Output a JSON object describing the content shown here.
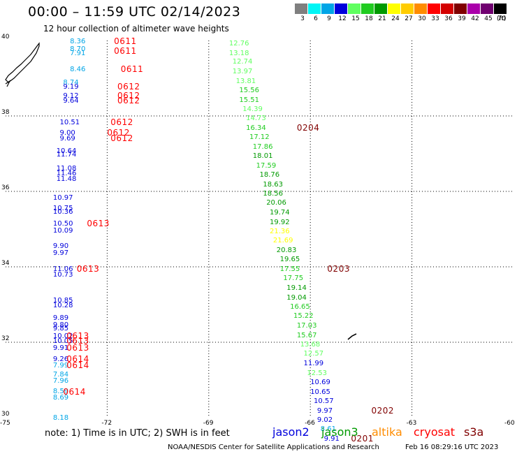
{
  "header": {
    "title": "00:00 – 11:59 UTC 02/14/2023",
    "subtitle": "12 hour collection of altimeter wave heights"
  },
  "legend": {
    "unit": "(ft)",
    "bins": [
      {
        "label": "3",
        "color": "#7f7f7f"
      },
      {
        "label": "6",
        "color": "#00f5f5"
      },
      {
        "label": "9",
        "color": "#00a5e6"
      },
      {
        "label": "12",
        "color": "#0000dc"
      },
      {
        "label": "15",
        "color": "#60ff60"
      },
      {
        "label": "18",
        "color": "#20cc20"
      },
      {
        "label": "21",
        "color": "#009a00"
      },
      {
        "label": "24",
        "color": "#ffff00"
      },
      {
        "label": "27",
        "color": "#ffcc00"
      },
      {
        "label": "30",
        "color": "#ff8c00"
      },
      {
        "label": "33",
        "color": "#ff0000"
      },
      {
        "label": "36",
        "color": "#d40000"
      },
      {
        "label": "39",
        "color": "#800000"
      },
      {
        "label": "42",
        "color": "#aa00aa"
      },
      {
        "label": "45",
        "color": "#700070"
      },
      {
        "label": "70",
        "color": "#000000"
      }
    ]
  },
  "axes": {
    "lon_ticks": [
      "-75",
      "-72",
      "-69",
      "-66",
      "-63",
      "-60"
    ],
    "lat_ticks": [
      "40",
      "38",
      "36",
      "34",
      "32",
      "30"
    ],
    "lon_range": [
      -75,
      -60
    ],
    "lat_range": [
      30,
      40
    ]
  },
  "chart_data": {
    "type": "scatter",
    "title": "00:00 – 11:59 UTC 02/14/2023",
    "subtitle": "12 hour collection of altimeter wave heights",
    "units": "ft",
    "grid": true,
    "track_west": [
      {
        "lon": -73.1,
        "lat": 39.98,
        "swh": 8.36
      },
      {
        "lon": -73.1,
        "lat": 39.77,
        "swh": 8.7
      },
      {
        "lon": -73.1,
        "lat": 39.67,
        "swh": 7.91
      },
      {
        "lon": -73.1,
        "lat": 39.24,
        "swh": 8.46
      },
      {
        "lon": -73.3,
        "lat": 38.88,
        "swh": 8.74
      },
      {
        "lon": -73.3,
        "lat": 38.78,
        "swh": 9.19
      },
      {
        "lon": -73.3,
        "lat": 38.53,
        "swh": 9.12
      },
      {
        "lon": -73.3,
        "lat": 38.41,
        "swh": 9.64
      },
      {
        "lon": -73.4,
        "lat": 37.84,
        "swh": 10.51
      },
      {
        "lon": -73.4,
        "lat": 37.55,
        "swh": 9.0
      },
      {
        "lon": -73.4,
        "lat": 37.41,
        "swh": 9.69
      },
      {
        "lon": -73.5,
        "lat": 37.08,
        "swh": 10.64
      },
      {
        "lon": -73.5,
        "lat": 36.98,
        "swh": 11.74
      },
      {
        "lon": -73.5,
        "lat": 36.61,
        "swh": 11.08
      },
      {
        "lon": -73.5,
        "lat": 36.49,
        "swh": 11.46
      },
      {
        "lon": -73.5,
        "lat": 36.34,
        "swh": 11.48
      },
      {
        "lon": -73.6,
        "lat": 35.84,
        "swh": 10.97
      },
      {
        "lon": -73.6,
        "lat": 35.56,
        "swh": 10.75
      },
      {
        "lon": -73.6,
        "lat": 35.46,
        "swh": 10.36
      },
      {
        "lon": -73.6,
        "lat": 35.15,
        "swh": 10.5
      },
      {
        "lon": -73.6,
        "lat": 34.96,
        "swh": 10.09
      },
      {
        "lon": -73.6,
        "lat": 34.56,
        "swh": 9.9
      },
      {
        "lon": -73.6,
        "lat": 34.37,
        "swh": 9.97
      },
      {
        "lon": -73.6,
        "lat": 33.95,
        "swh": 11.06
      },
      {
        "lon": -73.6,
        "lat": 33.79,
        "swh": 10.73
      },
      {
        "lon": -73.6,
        "lat": 33.11,
        "swh": 10.85
      },
      {
        "lon": -73.6,
        "lat": 32.98,
        "swh": 10.28
      },
      {
        "lon": -73.6,
        "lat": 32.65,
        "swh": 9.89
      },
      {
        "lon": -73.6,
        "lat": 32.46,
        "swh": 9.8
      },
      {
        "lon": -73.6,
        "lat": 32.37,
        "swh": 9.85
      },
      {
        "lon": -73.6,
        "lat": 32.16,
        "swh": 10.02
      },
      {
        "lon": -73.6,
        "lat": 32.04,
        "swh": 10.05
      },
      {
        "lon": -73.6,
        "lat": 31.86,
        "swh": 9.91
      },
      {
        "lon": -73.6,
        "lat": 31.55,
        "swh": 9.26
      },
      {
        "lon": -73.6,
        "lat": 31.38,
        "swh": 7.99
      },
      {
        "lon": -73.6,
        "lat": 31.15,
        "swh": 7.84
      },
      {
        "lon": -73.6,
        "lat": 30.99,
        "swh": 7.96
      },
      {
        "lon": -73.6,
        "lat": 30.7,
        "swh": 8.59
      },
      {
        "lon": -73.6,
        "lat": 30.54,
        "swh": 8.69
      },
      {
        "lon": -73.6,
        "lat": 30.0,
        "swh": 8.18
      }
    ],
    "track_east": [
      {
        "lon": -68.4,
        "lat": 39.93,
        "swh": 12.76
      },
      {
        "lon": -68.4,
        "lat": 39.67,
        "swh": 13.18
      },
      {
        "lon": -68.3,
        "lat": 39.44,
        "swh": 12.74
      },
      {
        "lon": -68.3,
        "lat": 39.18,
        "swh": 13.97
      },
      {
        "lon": -68.2,
        "lat": 38.93,
        "swh": 13.81
      },
      {
        "lon": -68.1,
        "lat": 38.69,
        "swh": 15.56
      },
      {
        "lon": -68.1,
        "lat": 38.42,
        "swh": 15.51
      },
      {
        "lon": -68.0,
        "lat": 38.18,
        "swh": 14.39
      },
      {
        "lon": -67.9,
        "lat": 37.94,
        "swh": 14.73
      },
      {
        "lon": -67.9,
        "lat": 37.69,
        "swh": 16.34
      },
      {
        "lon": -67.8,
        "lat": 37.44,
        "swh": 17.12
      },
      {
        "lon": -67.7,
        "lat": 37.19,
        "swh": 17.86
      },
      {
        "lon": -67.7,
        "lat": 36.94,
        "swh": 18.01
      },
      {
        "lon": -67.6,
        "lat": 36.69,
        "swh": 17.59
      },
      {
        "lon": -67.5,
        "lat": 36.44,
        "swh": 18.76
      },
      {
        "lon": -67.4,
        "lat": 36.19,
        "swh": 18.63
      },
      {
        "lon": -67.4,
        "lat": 35.94,
        "swh": 18.56
      },
      {
        "lon": -67.3,
        "lat": 35.7,
        "swh": 20.06
      },
      {
        "lon": -67.2,
        "lat": 35.44,
        "swh": 19.74
      },
      {
        "lon": -67.2,
        "lat": 35.19,
        "swh": 19.92
      },
      {
        "lon": -67.2,
        "lat": 34.95,
        "swh": 21.36
      },
      {
        "lon": -67.1,
        "lat": 34.7,
        "swh": 21.69
      },
      {
        "lon": -67.0,
        "lat": 34.44,
        "swh": 20.83
      },
      {
        "lon": -66.9,
        "lat": 34.2,
        "swh": 19.65
      },
      {
        "lon": -66.9,
        "lat": 33.95,
        "swh": 17.55
      },
      {
        "lon": -66.8,
        "lat": 33.7,
        "swh": 17.75
      },
      {
        "lon": -66.7,
        "lat": 33.44,
        "swh": 19.14
      },
      {
        "lon": -66.7,
        "lat": 33.19,
        "swh": 19.04
      },
      {
        "lon": -66.6,
        "lat": 32.94,
        "swh": 16.65
      },
      {
        "lon": -66.5,
        "lat": 32.7,
        "swh": 15.22
      },
      {
        "lon": -66.4,
        "lat": 32.44,
        "swh": 17.03
      },
      {
        "lon": -66.4,
        "lat": 32.19,
        "swh": 15.67
      },
      {
        "lon": -66.3,
        "lat": 31.95,
        "swh": 13.68
      },
      {
        "lon": -66.2,
        "lat": 31.7,
        "swh": 12.57
      },
      {
        "lon": -66.2,
        "lat": 31.44,
        "swh": 11.99
      },
      {
        "lon": -66.1,
        "lat": 31.19,
        "swh": 12.53
      },
      {
        "lon": -66.0,
        "lat": 30.94,
        "swh": 10.69
      },
      {
        "lon": -66.0,
        "lat": 30.69,
        "swh": 10.65
      },
      {
        "lon": -65.9,
        "lat": 30.44,
        "swh": 10.57
      },
      {
        "lon": -65.8,
        "lat": 30.19,
        "swh": 9.97
      },
      {
        "lon": -65.8,
        "lat": 29.94,
        "swh": 9.02
      },
      {
        "lon": -65.7,
        "lat": 29.7,
        "swh": 8.61
      },
      {
        "lon": -65.6,
        "lat": 29.44,
        "swh": 9.91
      }
    ],
    "times": [
      {
        "label": "0611",
        "color": "#ff0000",
        "lon": -71.8,
        "lat": 39.98
      },
      {
        "label": "0611",
        "color": "#ff0000",
        "lon": -71.8,
        "lat": 39.72
      },
      {
        "label": "0611",
        "color": "#ff0000",
        "lon": -71.6,
        "lat": 39.24
      },
      {
        "label": "0612",
        "color": "#ff0000",
        "lon": -71.7,
        "lat": 38.78
      },
      {
        "label": "0612",
        "color": "#ff0000",
        "lon": -71.7,
        "lat": 38.53
      },
      {
        "label": "0612",
        "color": "#ff0000",
        "lon": -71.7,
        "lat": 38.41
      },
      {
        "label": "0612",
        "color": "#ff0000",
        "lon": -71.9,
        "lat": 37.84
      },
      {
        "label": "0612",
        "color": "#ff0000",
        "lon": -72.0,
        "lat": 37.55
      },
      {
        "label": "0612",
        "color": "#ff0000",
        "lon": -71.9,
        "lat": 37.41
      },
      {
        "label": "0613",
        "color": "#ff0000",
        "lon": -72.6,
        "lat": 35.15
      },
      {
        "label": "0613",
        "color": "#ff0000",
        "lon": -72.9,
        "lat": 33.95
      },
      {
        "label": "0613",
        "color": "#ff0000",
        "lon": -73.2,
        "lat": 32.16
      },
      {
        "label": "0613",
        "color": "#ff0000",
        "lon": -73.2,
        "lat": 32.04
      },
      {
        "label": "0613",
        "color": "#ff0000",
        "lon": -73.2,
        "lat": 31.86
      },
      {
        "label": "0614",
        "color": "#ff0000",
        "lon": -73.2,
        "lat": 31.55
      },
      {
        "label": "0614",
        "color": "#ff0000",
        "lon": -73.2,
        "lat": 31.38
      },
      {
        "label": "0614",
        "color": "#ff0000",
        "lon": -73.3,
        "lat": 30.69
      },
      {
        "label": "0204",
        "color": "#800000",
        "lon": -66.4,
        "lat": 37.69
      },
      {
        "label": "0203",
        "color": "#800000",
        "lon": -65.5,
        "lat": 33.95
      },
      {
        "label": "0202",
        "color": "#800000",
        "lon": -64.2,
        "lat": 30.19
      },
      {
        "label": "0201",
        "color": "#800000",
        "lon": -64.8,
        "lat": 29.44
      }
    ]
  },
  "footer": {
    "note": "note:  1) Time is in UTC; 2) SWH is in feet",
    "missions": [
      {
        "label": "jason2",
        "color": "#0000dc"
      },
      {
        "label": "jason3",
        "color": "#009a00"
      },
      {
        "label": "altika",
        "color": "#ff8c00"
      },
      {
        "label": "cryosat",
        "color": "#ff0000"
      },
      {
        "label": "s3a",
        "color": "#800000"
      }
    ],
    "credit": "NOAA/NESDIS Center for Satellite Applications and Research",
    "timestamp": "Feb 16 08:29:16 UTC 2023"
  }
}
